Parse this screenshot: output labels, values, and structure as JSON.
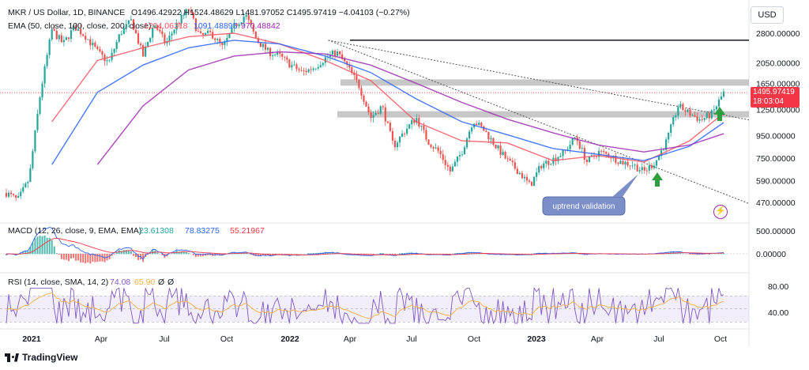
{
  "chart_data": {
    "type": "candlestick",
    "symbol": "MKR / US Dollar, 1D, BINANCE",
    "ohlc_header": "O1496.42922 H1524.48629 L1481.97052 C1495.97419 −4.04103 (−0.27%)",
    "ema_header": "EMA (50, close, 100, close, 200, close)",
    "ema_values": [
      "1204.06318",
      "1091.48895",
      "970.48842"
    ],
    "currency": "USD",
    "scale": "log",
    "last_price": "1495.97419",
    "countdown": "18:03:04",
    "price_ticks": [
      "2800.00000",
      "2050.00000",
      "1650.00000",
      "1250.00000",
      "950.00000",
      "750.00000",
      "590.00000",
      "470.00000"
    ],
    "price_tick_values": [
      2800,
      2050,
      1650,
      1250,
      950,
      750,
      590,
      470
    ],
    "x_ticks": [
      "2021",
      "Apr",
      "Jul",
      "Oct",
      "2022",
      "Apr",
      "Jul",
      "Oct",
      "2023",
      "Apr",
      "Jul",
      "Oct"
    ],
    "price_path": [
      [
        0,
        520
      ],
      [
        1,
        480
      ],
      [
        2,
        600
      ],
      [
        3,
        1500
      ],
      [
        4,
        2900
      ],
      [
        5,
        2500
      ],
      [
        6,
        3000
      ],
      [
        7,
        2700
      ],
      [
        8,
        2300
      ],
      [
        9,
        2050
      ],
      [
        10,
        2800
      ],
      [
        11,
        3200
      ],
      [
        12,
        2200
      ],
      [
        13,
        3100
      ],
      [
        14,
        2500
      ],
      [
        15,
        3100
      ],
      [
        16,
        3600
      ],
      [
        17,
        2700
      ],
      [
        18,
        2800
      ],
      [
        19,
        2400
      ],
      [
        20,
        3000
      ],
      [
        21,
        3400
      ],
      [
        22,
        2600
      ],
      [
        23,
        2300
      ],
      [
        24,
        2200
      ],
      [
        25,
        2000
      ],
      [
        26,
        1850
      ],
      [
        27,
        1950
      ],
      [
        28,
        2150
      ],
      [
        29,
        2300
      ],
      [
        30,
        1950
      ],
      [
        31,
        1600
      ],
      [
        32,
        1150
      ],
      [
        33,
        1300
      ],
      [
        34,
        850
      ],
      [
        35,
        1000
      ],
      [
        36,
        1150
      ],
      [
        37,
        900
      ],
      [
        38,
        800
      ],
      [
        39,
        650
      ],
      [
        40,
        800
      ],
      [
        41,
        1120
      ],
      [
        42,
        1000
      ],
      [
        43,
        850
      ],
      [
        44,
        730
      ],
      [
        45,
        650
      ],
      [
        46,
        560
      ],
      [
        47,
        700
      ],
      [
        48,
        740
      ],
      [
        49,
        800
      ],
      [
        50,
        940
      ],
      [
        51,
        720
      ],
      [
        52,
        800
      ],
      [
        53,
        770
      ],
      [
        54,
        720
      ],
      [
        55,
        700
      ],
      [
        56,
        650
      ],
      [
        57,
        720
      ],
      [
        58,
        900
      ],
      [
        59,
        1300
      ],
      [
        60,
        1200
      ],
      [
        61,
        1120
      ],
      [
        62,
        1200
      ],
      [
        63,
        1496
      ]
    ],
    "ema_series": [
      {
        "name": "EMA 50",
        "color": "#f7525f",
        "values": [
          [
            4,
            1100
          ],
          [
            8,
            2100
          ],
          [
            12,
            2400
          ],
          [
            16,
            2700
          ],
          [
            20,
            2800
          ],
          [
            24,
            2500
          ],
          [
            28,
            2100
          ],
          [
            32,
            1700
          ],
          [
            36,
            1100
          ],
          [
            40,
            900
          ],
          [
            44,
            880
          ],
          [
            48,
            730
          ],
          [
            52,
            770
          ],
          [
            56,
            720
          ],
          [
            60,
            900
          ],
          [
            63,
            1204
          ]
        ]
      },
      {
        "name": "EMA 100",
        "color": "#2962ff",
        "values": [
          [
            4,
            700
          ],
          [
            8,
            1500
          ],
          [
            12,
            2000
          ],
          [
            16,
            2400
          ],
          [
            20,
            2600
          ],
          [
            24,
            2500
          ],
          [
            28,
            2200
          ],
          [
            32,
            1850
          ],
          [
            36,
            1400
          ],
          [
            40,
            1100
          ],
          [
            44,
            960
          ],
          [
            48,
            830
          ],
          [
            52,
            780
          ],
          [
            56,
            730
          ],
          [
            60,
            850
          ],
          [
            63,
            1091
          ]
        ]
      },
      {
        "name": "EMA 200",
        "color": "#9c27b0",
        "values": [
          [
            8,
            700
          ],
          [
            12,
            1300
          ],
          [
            16,
            1900
          ],
          [
            20,
            2200
          ],
          [
            24,
            2300
          ],
          [
            28,
            2250
          ],
          [
            32,
            2000
          ],
          [
            36,
            1650
          ],
          [
            40,
            1350
          ],
          [
            44,
            1130
          ],
          [
            48,
            980
          ],
          [
            52,
            860
          ],
          [
            56,
            800
          ],
          [
            60,
            860
          ],
          [
            63,
            970
          ]
        ]
      }
    ],
    "resistance_zones": [
      1650,
      1200
    ],
    "horizontal_line": 2600,
    "trend_lines": [
      [
        [
          28,
          2600
        ],
        [
          63,
          1200
        ]
      ],
      [
        [
          28,
          2600
        ],
        [
          63,
          480
        ]
      ]
    ],
    "annotation": "uptrend validation",
    "macd_header": "MACD (12, 26, close, 9, EMA, EMA)",
    "macd_values": [
      "23.61308",
      "78.83275",
      "55.21967"
    ],
    "macd_ticks": [
      "500.00000",
      "0.00000"
    ],
    "rsi_header": "RSI (14, close, SMA, 14, 2)",
    "rsi_values": [
      "74.08",
      "65.90",
      "Ø",
      "Ø"
    ],
    "rsi_ticks": [
      "80.00",
      "40.00"
    ],
    "rsi_band": [
      30,
      70
    ]
  },
  "footer": {
    "brand": "TradingView"
  },
  "colors": {
    "up": "#26a69a",
    "down": "#ef5350",
    "price_line": "#f23645",
    "zone": "#bdbdbd",
    "rsi_band": "#7e57c2"
  }
}
